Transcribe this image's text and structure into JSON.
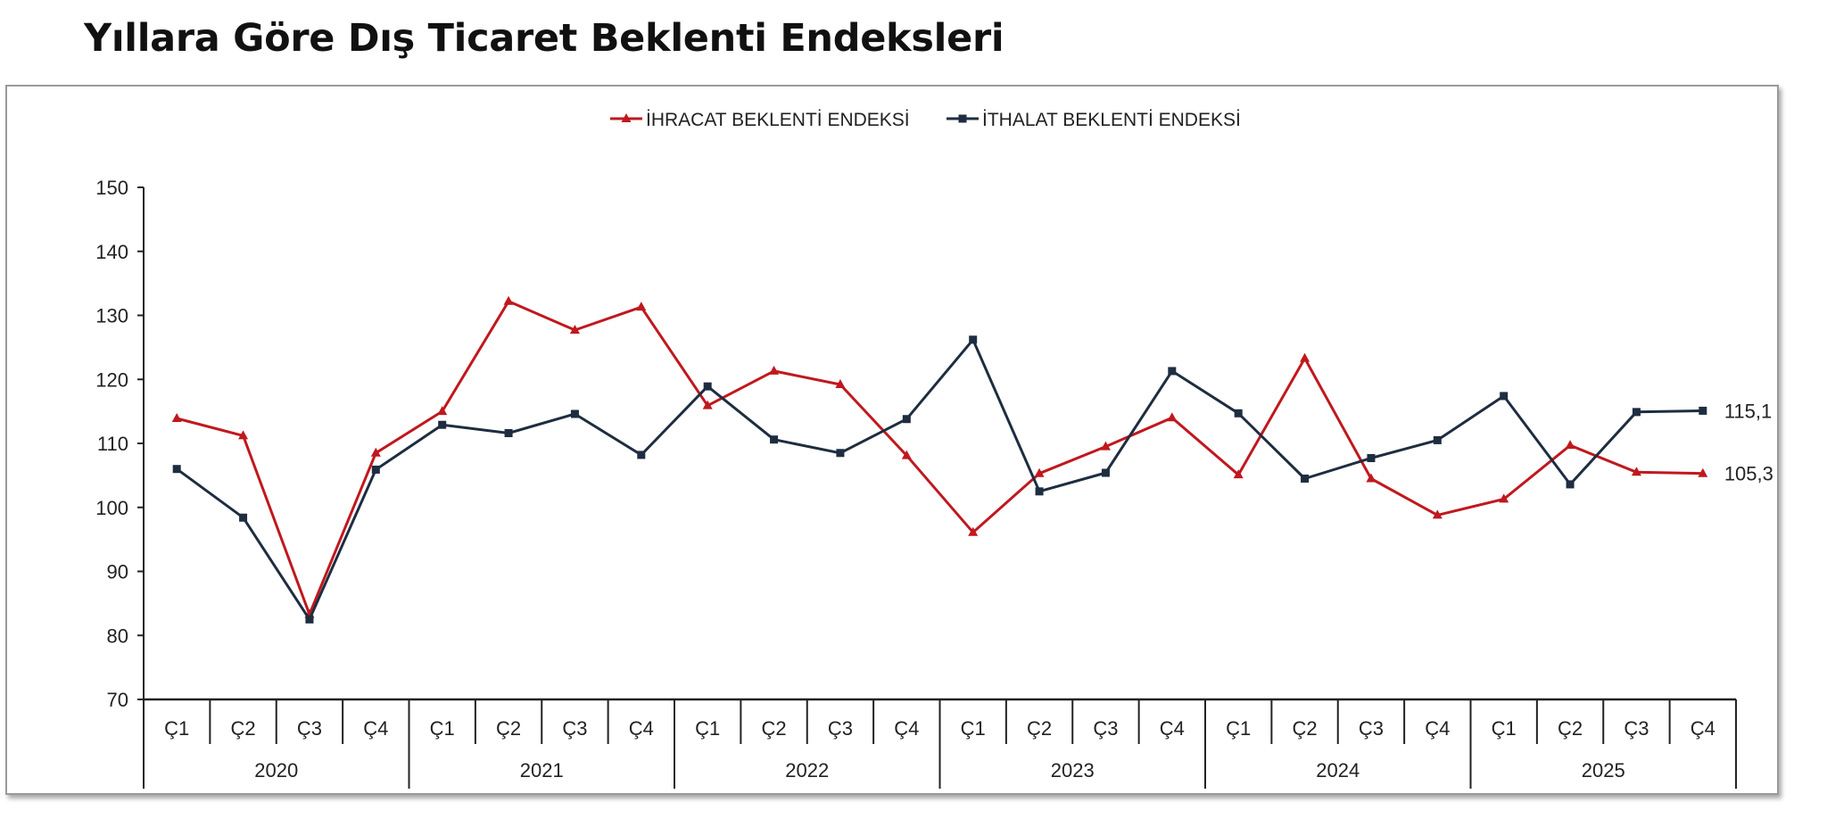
{
  "page": {
    "title": "Yıllara Göre Dış Ticaret Beklenti Endeksleri"
  },
  "chart_data": {
    "type": "line",
    "title": "Yıllara Göre Dış Ticaret Beklenti Endeksleri",
    "xlabel": "",
    "ylabel": "",
    "ylim": [
      70,
      150
    ],
    "yticks": [
      70,
      80,
      90,
      100,
      110,
      120,
      130,
      140,
      150
    ],
    "grid": false,
    "legend_position": "top-center",
    "quarters": [
      "Ç1",
      "Ç2",
      "Ç3",
      "Ç4",
      "Ç1",
      "Ç2",
      "Ç3",
      "Ç4",
      "Ç1",
      "Ç2",
      "Ç3",
      "Ç4",
      "Ç1",
      "Ç2",
      "Ç3",
      "Ç4",
      "Ç1",
      "Ç2",
      "Ç3",
      "Ç4",
      "Ç1",
      "Ç2",
      "Ç3",
      "Ç4"
    ],
    "years": [
      "2020",
      "2021",
      "2022",
      "2023",
      "2024",
      "2025"
    ],
    "series": [
      {
        "name": "İHRACAT BEKLENTİ ENDEKSİ",
        "color": "#c0181e",
        "marker": "triangle",
        "values": [
          113.9,
          111.2,
          83.3,
          108.5,
          115.0,
          132.2,
          127.7,
          131.3,
          115.9,
          121.3,
          119.2,
          108.1,
          96.1,
          105.3,
          109.5,
          114.0,
          105.1,
          123.3,
          104.5,
          98.8,
          101.3,
          109.7,
          105.5,
          105.3
        ],
        "end_label": "105,3"
      },
      {
        "name": "İTHALAT BEKLENTİ ENDEKSİ",
        "color": "#1e2d40",
        "marker": "square",
        "values": [
          106.0,
          98.4,
          82.5,
          105.9,
          112.9,
          111.6,
          114.6,
          108.2,
          118.9,
          110.6,
          108.5,
          113.8,
          126.2,
          102.5,
          105.4,
          121.3,
          114.7,
          104.5,
          107.7,
          110.5,
          117.4,
          103.6,
          114.9,
          115.1
        ],
        "end_label": "115,1"
      }
    ]
  }
}
